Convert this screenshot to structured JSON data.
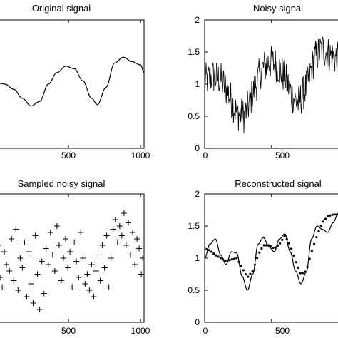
{
  "chart_data": [
    {
      "id": "original",
      "type": "line",
      "title": "Original signal",
      "xlim": [
        0,
        1024
      ],
      "ylim": [
        0,
        2
      ],
      "xticks": [
        500,
        1000
      ],
      "yticks": [],
      "series": [
        {
          "style": "line",
          "x": [
            0,
            60,
            120,
            180,
            240,
            300,
            360,
            420,
            480,
            540,
            600,
            660,
            700,
            760,
            820,
            880,
            940,
            1000,
            1024
          ],
          "y": [
            1.02,
            1.0,
            0.92,
            0.78,
            0.66,
            0.73,
            1.0,
            1.18,
            1.28,
            1.24,
            1.05,
            0.78,
            0.68,
            0.95,
            1.33,
            1.42,
            1.35,
            1.3,
            1.18
          ]
        }
      ]
    },
    {
      "id": "noisy",
      "type": "line",
      "title": "Noisy signal",
      "xlim": [
        0,
        1024
      ],
      "ylim": [
        0,
        2
      ],
      "xticks": [
        0,
        500
      ],
      "yticks": [
        0,
        0.5,
        1,
        1.5,
        2
      ],
      "series": [
        {
          "style": "noisy",
          "x": [
            0,
            60,
            120,
            180,
            240,
            300,
            360,
            420,
            480,
            540,
            600,
            660,
            700,
            760,
            820,
            880,
            940,
            1000,
            1024
          ],
          "y": [
            1.05,
            1.12,
            1.08,
            0.85,
            0.55,
            0.5,
            0.85,
            1.2,
            1.35,
            1.3,
            1.1,
            0.8,
            0.7,
            0.95,
            1.4,
            1.55,
            1.45,
            1.38,
            1.25
          ],
          "spread": 0.28,
          "points": 300
        }
      ]
    },
    {
      "id": "sampled",
      "type": "scatter",
      "title": "Sampled noisy signal",
      "xlim": [
        0,
        1024
      ],
      "ylim": [
        0,
        2
      ],
      "xticks": [
        500,
        1000
      ],
      "yticks": [],
      "series": [
        {
          "style": "plus",
          "x": [
            5,
            12,
            25,
            40,
            55,
            70,
            90,
            105,
            120,
            135,
            150,
            165,
            180,
            195,
            210,
            225,
            240,
            255,
            270,
            285,
            300,
            315,
            330,
            345,
            360,
            375,
            390,
            405,
            420,
            435,
            450,
            465,
            480,
            495,
            510,
            525,
            540,
            555,
            570,
            585,
            600,
            615,
            630,
            645,
            660,
            675,
            690,
            705,
            720,
            735,
            750,
            765,
            780,
            795,
            810,
            825,
            840,
            855,
            870,
            885,
            900,
            915,
            930,
            945,
            960,
            975,
            990,
            1005,
            1015
          ],
          "y": [
            0.95,
            1.2,
            0.7,
            0.55,
            1.1,
            0.9,
            0.8,
            1.3,
            0.65,
            1.45,
            0.5,
            1.0,
            0.85,
            1.25,
            0.4,
            1.1,
            0.6,
            0.3,
            1.35,
            0.75,
            0.2,
            0.95,
            0.45,
            1.15,
            0.9,
            1.4,
            1.05,
            0.8,
            1.5,
            1.2,
            0.65,
            1.0,
            1.3,
            0.85,
            1.1,
            0.55,
            1.25,
            0.95,
            0.7,
            1.4,
            1.0,
            0.6,
            0.75,
            0.5,
            0.9,
            0.4,
            0.8,
            1.05,
            0.65,
            1.2,
            0.85,
            1.35,
            0.55,
            1.0,
            1.45,
            1.6,
            1.25,
            1.5,
            1.35,
            1.7,
            1.2,
            1.55,
            1.05,
            1.4,
            0.9,
            1.3,
            1.15,
            0.75,
            1.0
          ]
        }
      ]
    },
    {
      "id": "reconstructed",
      "type": "line",
      "title": "Reconstructed signal",
      "xlim": [
        0,
        1024
      ],
      "ylim": [
        0,
        2
      ],
      "xticks": [
        0,
        500
      ],
      "yticks": [
        0,
        0.5,
        1,
        1.5,
        2
      ],
      "series": [
        {
          "style": "line",
          "x": [
            0,
            40,
            80,
            120,
            160,
            200,
            240,
            280,
            320,
            360,
            400,
            440,
            480,
            520,
            560,
            600,
            640,
            680,
            720,
            760,
            800,
            840,
            880,
            920,
            960,
            1000,
            1024
          ],
          "y": [
            1.0,
            1.22,
            1.3,
            1.05,
            0.9,
            1.1,
            1.08,
            0.72,
            0.5,
            0.75,
            1.22,
            1.32,
            1.18,
            1.1,
            1.3,
            1.38,
            1.1,
            0.8,
            0.6,
            0.78,
            1.3,
            1.5,
            1.45,
            1.4,
            1.55,
            1.7,
            1.6
          ]
        },
        {
          "style": "dots",
          "x": [
            0,
            40,
            80,
            120,
            160,
            200,
            240,
            280,
            320,
            360,
            400,
            440,
            480,
            520,
            560,
            600,
            640,
            680,
            720,
            760,
            800,
            840,
            880,
            920,
            960,
            1000,
            1024
          ],
          "y": [
            1.15,
            1.12,
            1.05,
            1.0,
            0.95,
            0.98,
            1.0,
            0.85,
            0.7,
            0.8,
            1.05,
            1.2,
            1.2,
            1.15,
            1.22,
            1.35,
            1.2,
            0.95,
            0.75,
            0.8,
            1.1,
            1.35,
            1.55,
            1.65,
            1.68,
            1.68,
            1.65
          ]
        }
      ]
    }
  ]
}
